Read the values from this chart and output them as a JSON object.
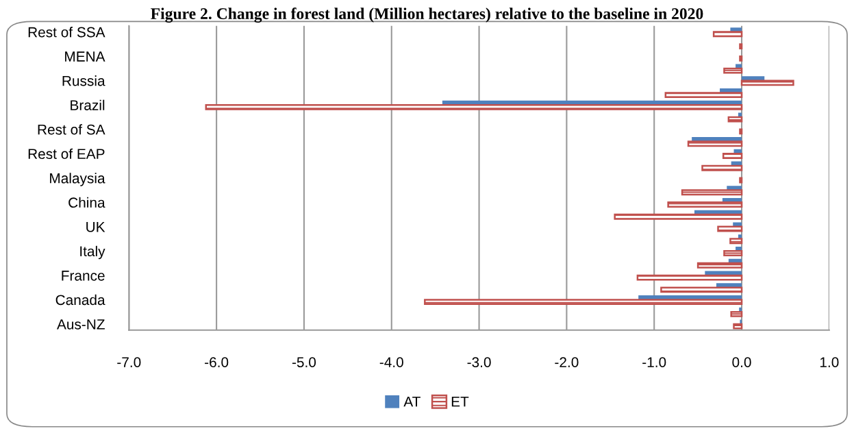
{
  "chart_data": {
    "type": "bar",
    "orientation": "horizontal",
    "title": "Figure 2. Change in forest land (Million hectares) relative to the baseline in 2020",
    "categories": [
      "Rest of SSA",
      null,
      "MENA",
      null,
      "Russia",
      null,
      "Brazil",
      null,
      "Rest of SA",
      null,
      "Rest of EAP",
      null,
      "Malaysia",
      null,
      "China",
      null,
      "UK",
      null,
      "Italy",
      null,
      "France",
      null,
      "Canada",
      null,
      "Aus-NZ"
    ],
    "series": [
      {
        "name": "AT",
        "color": "#4f81bd",
        "values": [
          -0.13,
          0,
          0,
          -0.07,
          0.26,
          -0.25,
          -3.42,
          -0.04,
          0,
          -0.57,
          -0.09,
          -0.12,
          0,
          -0.17,
          -0.22,
          -0.54,
          -0.1,
          -0.04,
          -0.07,
          -0.15,
          -0.42,
          -0.29,
          -1.18,
          -0.03,
          -0.02
        ]
      },
      {
        "name": "ET",
        "color": "#c0504d",
        "values": [
          -0.32,
          -0.02,
          -0.02,
          -0.2,
          0.59,
          -0.87,
          -6.12,
          -0.15,
          -0.02,
          -0.61,
          -0.21,
          -0.45,
          -0.02,
          -0.68,
          -0.84,
          -1.45,
          -0.27,
          -0.13,
          -0.2,
          -0.5,
          -1.19,
          -0.92,
          -3.62,
          -0.12,
          -0.09
        ]
      }
    ],
    "xlim": [
      -7,
      1
    ],
    "xticks": [
      {
        "value": -7,
        "label": "-7.0"
      },
      {
        "value": -6,
        "label": "-6.0"
      },
      {
        "value": -5,
        "label": "-5.0"
      },
      {
        "value": -4,
        "label": "-4.0"
      },
      {
        "value": -3,
        "label": "-3.0"
      },
      {
        "value": -2,
        "label": "-2.0"
      },
      {
        "value": -1,
        "label": "-1.0"
      },
      {
        "value": 0,
        "label": "0.0"
      },
      {
        "value": 1,
        "label": "1.0"
      }
    ],
    "grid": "x",
    "legend": "bottom"
  }
}
